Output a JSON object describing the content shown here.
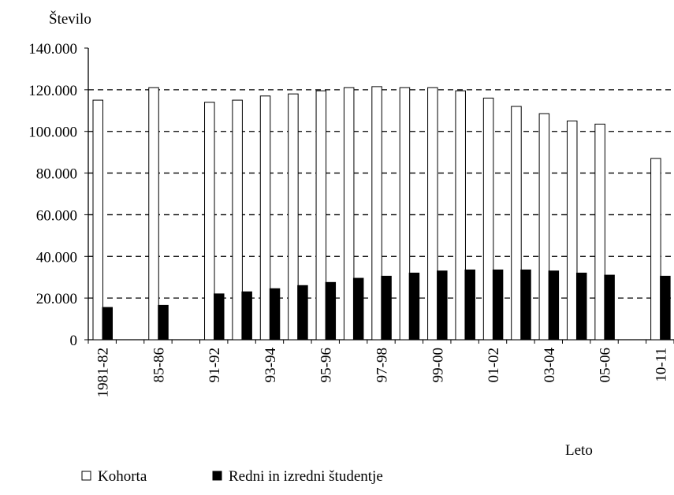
{
  "chart_data": {
    "type": "bar",
    "ylabel": "Število",
    "xlabel": "Leto",
    "categories": [
      "1981-82",
      null,
      "85-86",
      null,
      "91-92",
      null,
      "93-94",
      null,
      "95-96",
      null,
      "97-98",
      null,
      "99-00",
      null,
      "01-02",
      null,
      "03-04",
      null,
      "05-06",
      null,
      "10-11"
    ],
    "series": [
      {
        "name": "Kohorta",
        "color": "#ffffff",
        "values": [
          115000,
          null,
          121000,
          null,
          114000,
          115000,
          117000,
          118000,
          119500,
          121000,
          121500,
          121000,
          121000,
          119500,
          116000,
          112000,
          108500,
          105000,
          103500,
          null,
          87000
        ]
      },
      {
        "name": "Redni in izredni študentje",
        "color": "#000000",
        "values": [
          15500,
          null,
          16500,
          null,
          22000,
          23000,
          24500,
          26000,
          27500,
          29500,
          30500,
          32000,
          33000,
          33500,
          33500,
          33500,
          33000,
          32000,
          31000,
          null,
          30500
        ]
      }
    ],
    "ylim": [
      0,
      140000
    ],
    "yticks": [
      {
        "value": 0,
        "label": "0"
      },
      {
        "value": 20000,
        "label": "20.000"
      },
      {
        "value": 40000,
        "label": "40.000"
      },
      {
        "value": 60000,
        "label": "60.000"
      },
      {
        "value": 80000,
        "label": "80.000"
      },
      {
        "value": 100000,
        "label": "100.000"
      },
      {
        "value": 120000,
        "label": "120.000"
      },
      {
        "value": 140000,
        "label": "140.000"
      }
    ],
    "grid": true
  }
}
